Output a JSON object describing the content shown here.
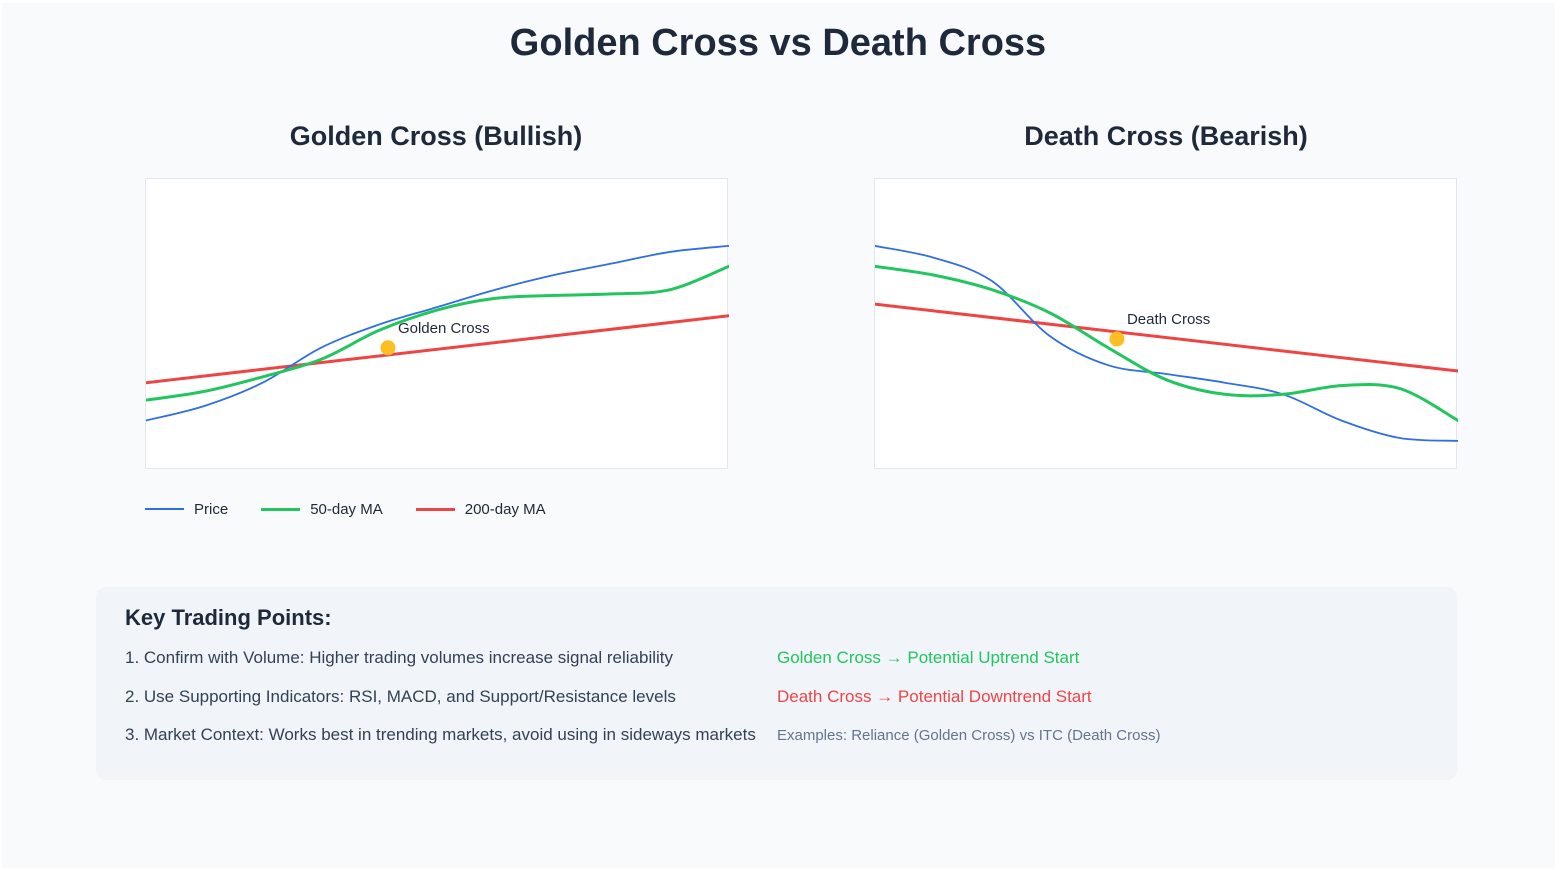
{
  "title": "Golden Cross vs Death Cross",
  "colors": {
    "price": "#2f6fe0",
    "ma50": "#22c55e",
    "ma200": "#ef4444",
    "marker": "#fbbf24",
    "text": "#1e293b"
  },
  "legend": [
    {
      "label": "Price",
      "color": "#2f6fe0",
      "key": "price"
    },
    {
      "label": "50-day MA",
      "color": "#22c55e",
      "key": "ma50"
    },
    {
      "label": "200-day MA",
      "color": "#ef4444",
      "key": "ma200"
    }
  ],
  "chart_data": [
    {
      "type": "line",
      "title": "Golden Cross (Bullish)",
      "xlim": [
        0,
        10
      ],
      "ylim": [
        0,
        100
      ],
      "grid": false,
      "legend_position": "bottom-left",
      "series": [
        {
          "name": "Price",
          "key": "price",
          "x": [
            0,
            1,
            2,
            3,
            4,
            5,
            6,
            7,
            8,
            9,
            10
          ],
          "y": [
            17,
            22,
            30,
            42,
            50,
            56,
            62,
            67,
            71,
            75,
            77
          ]
        },
        {
          "name": "50-day MA",
          "key": "ma50",
          "x": [
            0,
            1,
            2,
            3,
            4,
            5,
            6,
            7,
            8,
            9,
            10
          ],
          "y": [
            24,
            27,
            32,
            38,
            48,
            55,
            59,
            60,
            60.5,
            62,
            70
          ]
        },
        {
          "name": "200-day MA",
          "key": "ma200",
          "x": [
            0,
            10
          ],
          "y": [
            30,
            53
          ]
        }
      ],
      "annotation": {
        "label": "Golden Cross",
        "x": 4.15,
        "y": 42
      }
    },
    {
      "type": "line",
      "title": "Death Cross (Bearish)",
      "xlim": [
        0,
        10
      ],
      "ylim": [
        0,
        100
      ],
      "grid": false,
      "series": [
        {
          "name": "Price",
          "key": "price",
          "x": [
            0,
            1,
            2,
            3,
            4,
            5,
            6,
            7,
            8,
            9,
            10
          ],
          "y": [
            77,
            73,
            65,
            46,
            36,
            33,
            30,
            26,
            17,
            11,
            10
          ]
        },
        {
          "name": "50-day MA",
          "key": "ma50",
          "x": [
            0,
            1,
            2,
            3,
            4,
            5,
            6,
            7,
            8,
            9,
            10
          ],
          "y": [
            70,
            67,
            62,
            54,
            42,
            31,
            26,
            26,
            29,
            28,
            17
          ]
        },
        {
          "name": "200-day MA",
          "key": "ma200",
          "x": [
            0,
            10
          ],
          "y": [
            57,
            34
          ]
        }
      ],
      "annotation": {
        "label": "Death Cross",
        "x": 4.15,
        "y": 45
      }
    }
  ],
  "key_points": {
    "heading": "Key Trading Points:",
    "items": [
      "1. Confirm with Volume: Higher trading volumes increase signal reliability",
      "2. Use Supporting Indicators: RSI, MACD, and Support/Resistance levels",
      "3. Market Context: Works best in trending markets, avoid using in sideways markets"
    ],
    "golden_note": "Golden Cross → Potential Uptrend Start",
    "death_note": "Death Cross → Potential Downtrend Start",
    "examples": "Examples: Reliance (Golden Cross) vs ITC (Death Cross)"
  }
}
